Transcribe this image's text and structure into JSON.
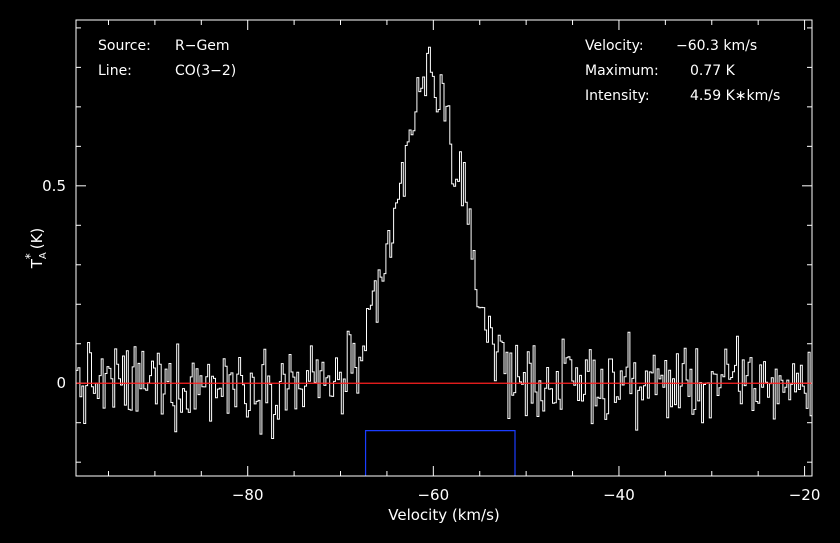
{
  "chart_data": {
    "type": "line",
    "xlabel": "Velocity (km/s)",
    "ylabel": "T",
    "ylabel_sub": "A",
    "ylabel_sup": "*",
    "ylabel_unit": "(K)",
    "xlim": [
      -98.5,
      -19.2
    ],
    "ylim": [
      -0.235,
      0.92
    ],
    "xticks": [
      -80,
      -60,
      -40,
      -20
    ],
    "xtick_labels": [
      "−80",
      "−60",
      "−40",
      "−20"
    ],
    "yticks": [
      0.5,
      0
    ],
    "ytick_labels": [
      "0.5",
      "0"
    ],
    "info_left": [
      {
        "key": "Source:",
        "value": "R−Gem"
      },
      {
        "key": "Line:",
        "value": "CO(3−2)"
      }
    ],
    "info_right": [
      {
        "key": "Velocity:",
        "value": "−60.3 km/s"
      },
      {
        "key": "Maximum:",
        "value": "0.77 K"
      },
      {
        "key": "Intensity:",
        "value": "4.59 K∗km/s"
      }
    ],
    "baseline": 0,
    "window": {
      "x_from": -67.3,
      "x_to": -51.2,
      "y_top": -0.12
    },
    "peak_velocity": -60.3,
    "peak_value": 0.77,
    "rms_noise": 0.05,
    "colors": {
      "background": "#000000",
      "spectrum": "#ffffff",
      "baseline": "#ff2020",
      "window": "#1a3cff",
      "axes": "#ffffff"
    }
  }
}
